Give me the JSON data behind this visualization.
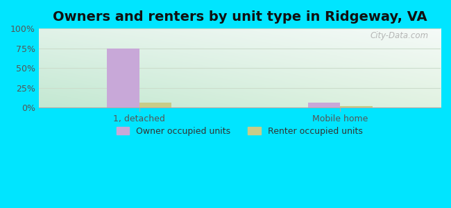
{
  "title": "Owners and renters by unit type in Ridgeway, VA",
  "categories": [
    "1, detached",
    "Mobile home"
  ],
  "owner_values": [
    75.0,
    6.0
  ],
  "renter_values": [
    6.0,
    2.0
  ],
  "owner_color": "#c8a8d8",
  "renter_color": "#c8cc88",
  "ylim": [
    0,
    100
  ],
  "yticks": [
    0,
    25,
    50,
    75,
    100
  ],
  "ytick_labels": [
    "0%",
    "25%",
    "50%",
    "75%",
    "100%"
  ],
  "outer_bg": "#00e5ff",
  "title_fontsize": 14,
  "legend_labels": [
    "Owner occupied units",
    "Renter occupied units"
  ],
  "watermark": "City-Data.com",
  "bar_width": 0.32,
  "group_positions": [
    1.0,
    3.0
  ],
  "xlim": [
    0,
    4
  ],
  "grid_color": "#ccddcc",
  "grid_linewidth": 0.8
}
